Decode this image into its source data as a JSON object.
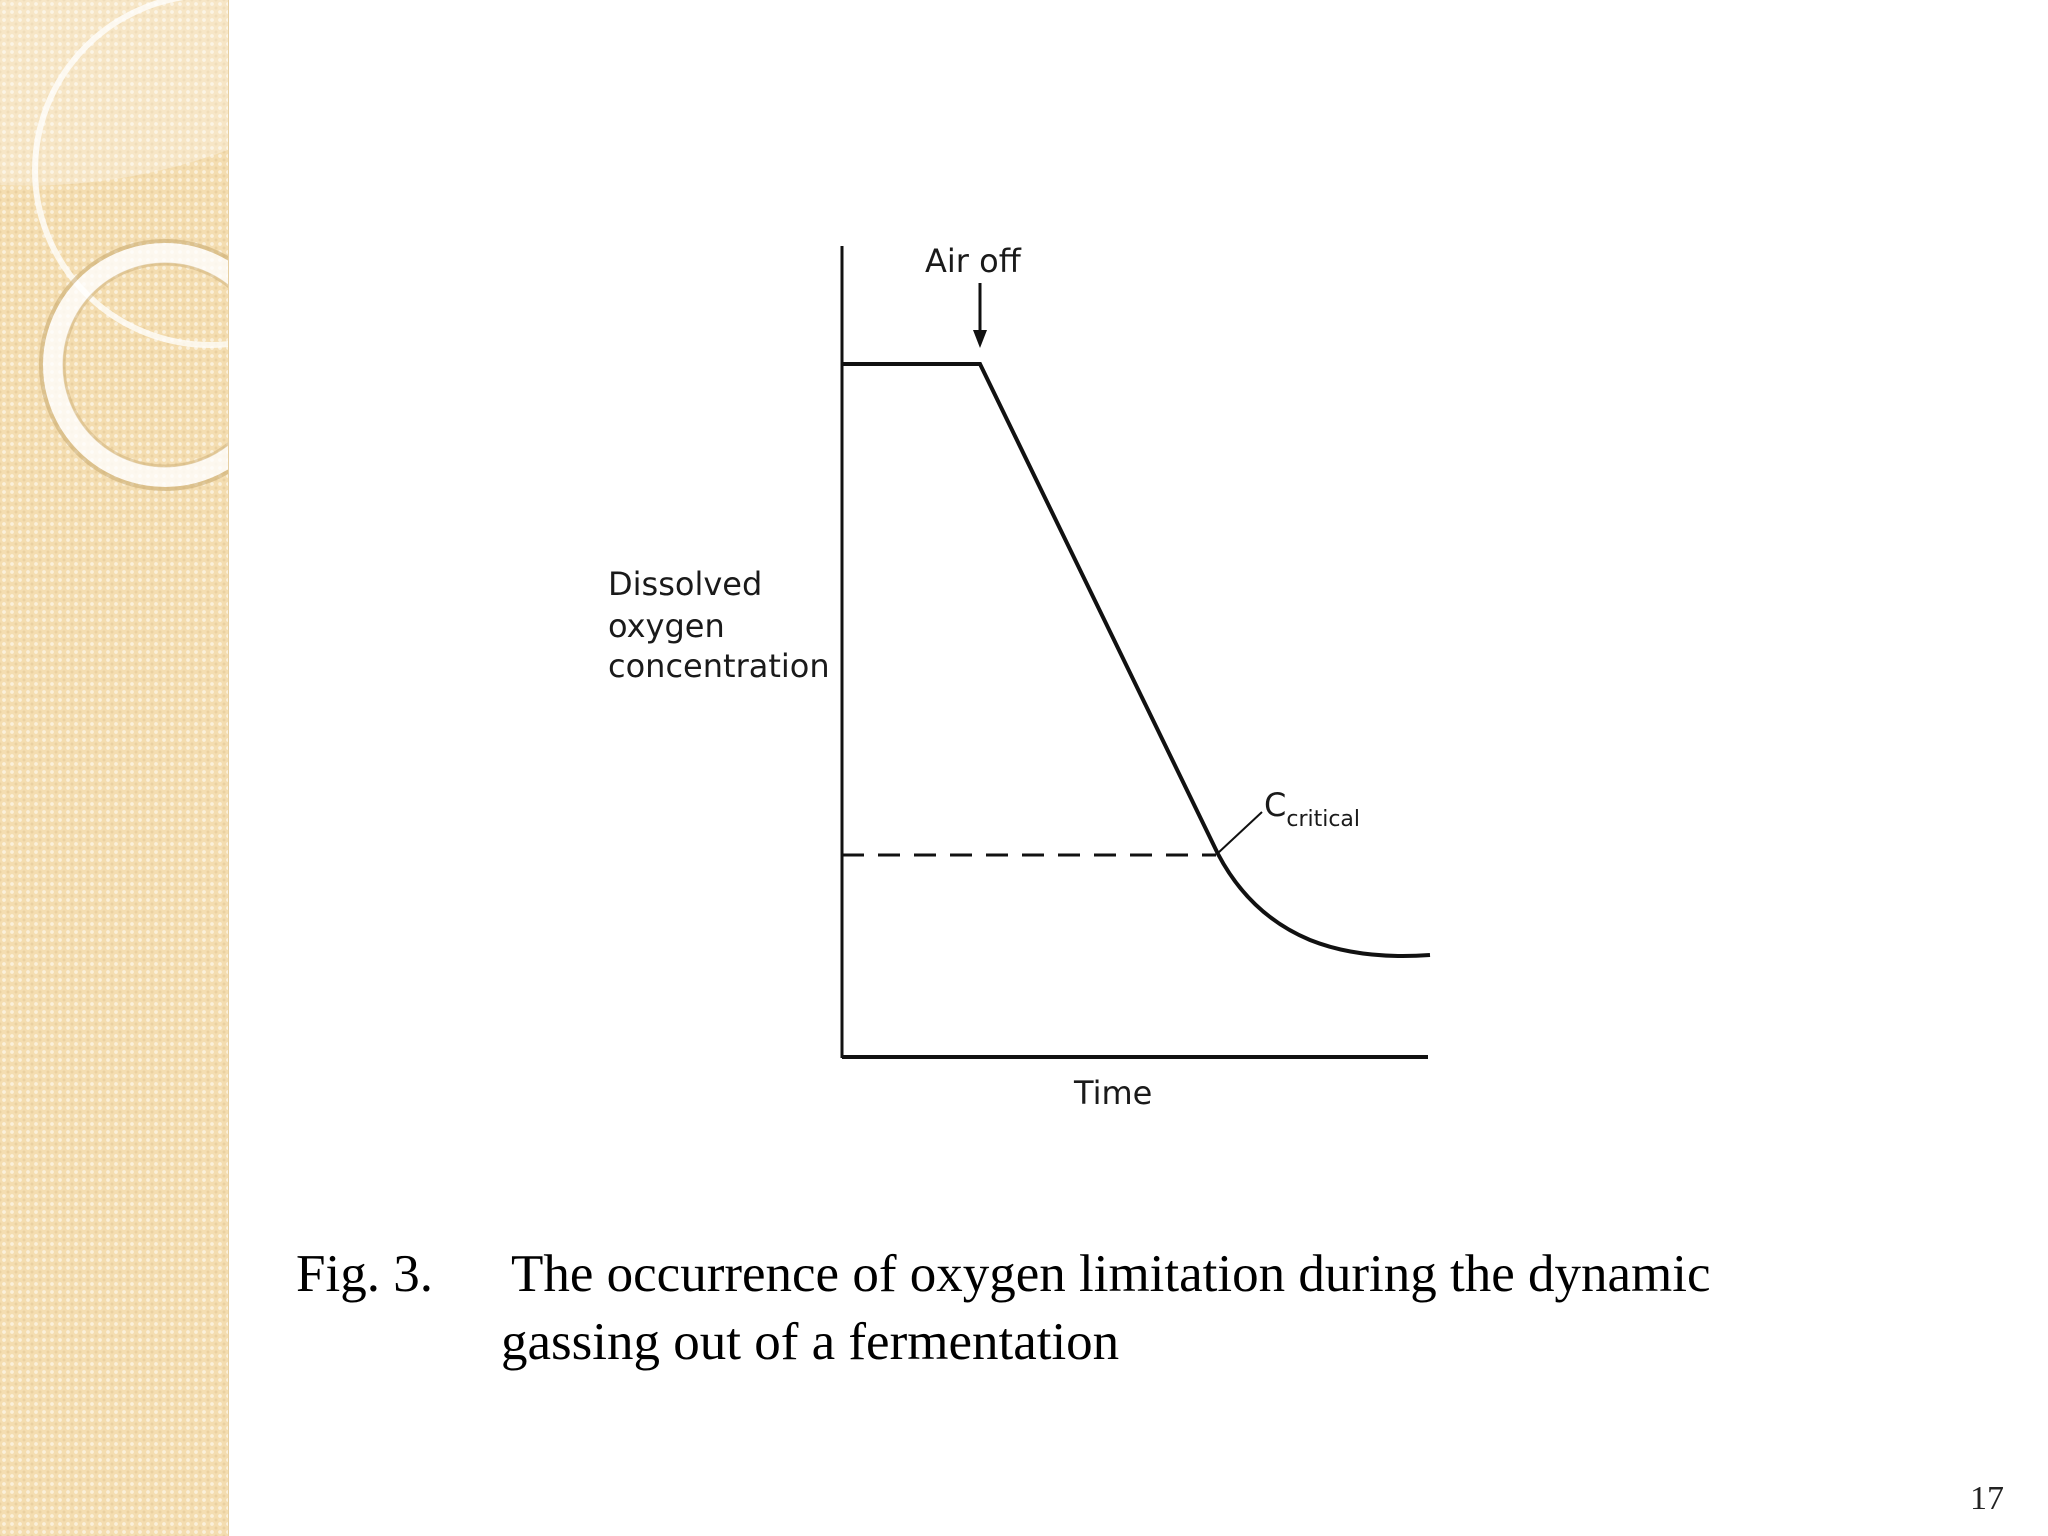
{
  "slide": {
    "page_number": "17",
    "accent_color": "#f4ddb0"
  },
  "figure": {
    "y_axis_label_lines": [
      "Dissolved",
      "oxygen",
      "concentration"
    ],
    "x_axis_label": "Time",
    "annotation_air_off": "Air off",
    "annotation_c_main": "C",
    "annotation_c_sub": "critical"
  },
  "caption": {
    "fig_number": "Fig. 3.",
    "line1": "The occurrence of oxygen limitation during the dynamic",
    "line2": "gassing out of a fermentation"
  }
}
